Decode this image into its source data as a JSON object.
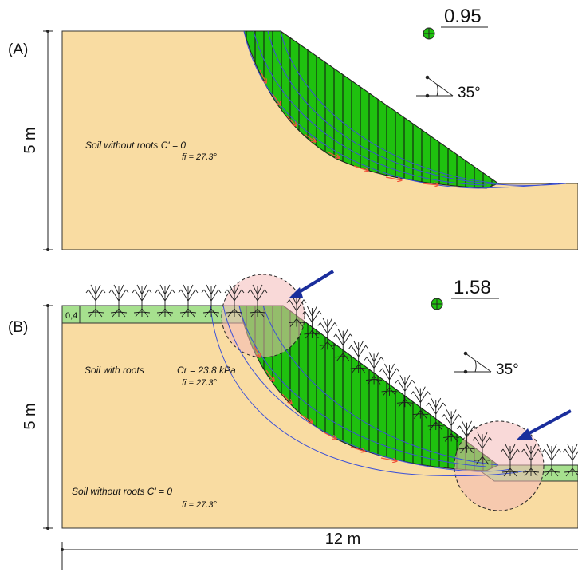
{
  "colors": {
    "soil": "#f9dca2",
    "mass": "#1fc10f",
    "root_layer": "#a6e08e",
    "root_circle": "#f4b9b8",
    "slip_line": "#3b50d8",
    "arrow_red": "#f0543b",
    "blue_arrow": "#1a2e9c"
  },
  "panel_a": {
    "label": "(A)",
    "height_label": "5 m",
    "factor_of_safety": "0.95",
    "angle": "35°",
    "soil_line1": "Soil without roots C' = 0",
    "soil_line2": "fi = 27.3°"
  },
  "panel_b": {
    "label": "(B)",
    "height_label": "5 m",
    "factor_of_safety": "1.58",
    "angle": "35°",
    "root_depth": "0,4",
    "roots_line1_a": "Soil with roots",
    "roots_line1_b": "Cr = 23.8 kPa",
    "roots_line2": "fi = 27.3°",
    "soil_line1": "Soil without roots C' = 0",
    "soil_line2": "fi = 27.3°"
  },
  "width_label": "12 m"
}
